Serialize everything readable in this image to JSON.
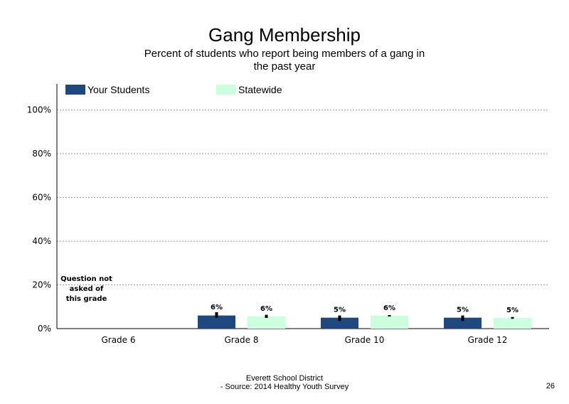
{
  "colors": {
    "your_students": "#1f497d",
    "statewide": "#ccffdd",
    "error_bar": "#000000"
  },
  "legend": {
    "your_students": "Your Students",
    "statewide": "Statewide"
  },
  "footer": {
    "line1": "Everett School District",
    "line2": "- Source: 2014 Healthy  Youth Survey"
  },
  "page_number": "26",
  "chart_data": {
    "type": "bar",
    "title": "Gang Membership",
    "subtitle": "Percent of students  who report being members  of a gang in the past year",
    "categories": [
      "Grade 6",
      "Grade 8",
      "Grade 10",
      "Grade 12"
    ],
    "series": [
      {
        "name": "Your Students",
        "values": [
          null,
          6,
          5,
          5
        ],
        "labels": [
          "",
          "6%",
          "5%",
          "5%"
        ],
        "error": [
          null,
          [
            5,
            7.5
          ],
          [
            3.5,
            6
          ],
          [
            3.5,
            6
          ]
        ]
      },
      {
        "name": "Statewide",
        "values": [
          null,
          5.6,
          5.9,
          4.9
        ],
        "labels": [
          "",
          "6%",
          "6%",
          "5%"
        ],
        "error": [
          null,
          [
            4.9,
            6.3
          ],
          [
            5.6,
            6.2
          ],
          [
            4.5,
            5.3
          ]
        ]
      }
    ],
    "ylim": [
      0,
      110
    ],
    "yticks": [
      0,
      20,
      40,
      60,
      80,
      100
    ],
    "ytick_labels": [
      "0%",
      "20%",
      "40%",
      "60%",
      "80%",
      "100%"
    ],
    "grid": "horizontal dotted",
    "legend_position": "top",
    "annotations": [
      {
        "category": "Grade 6",
        "text": "Question not asked of this grade"
      }
    ]
  }
}
